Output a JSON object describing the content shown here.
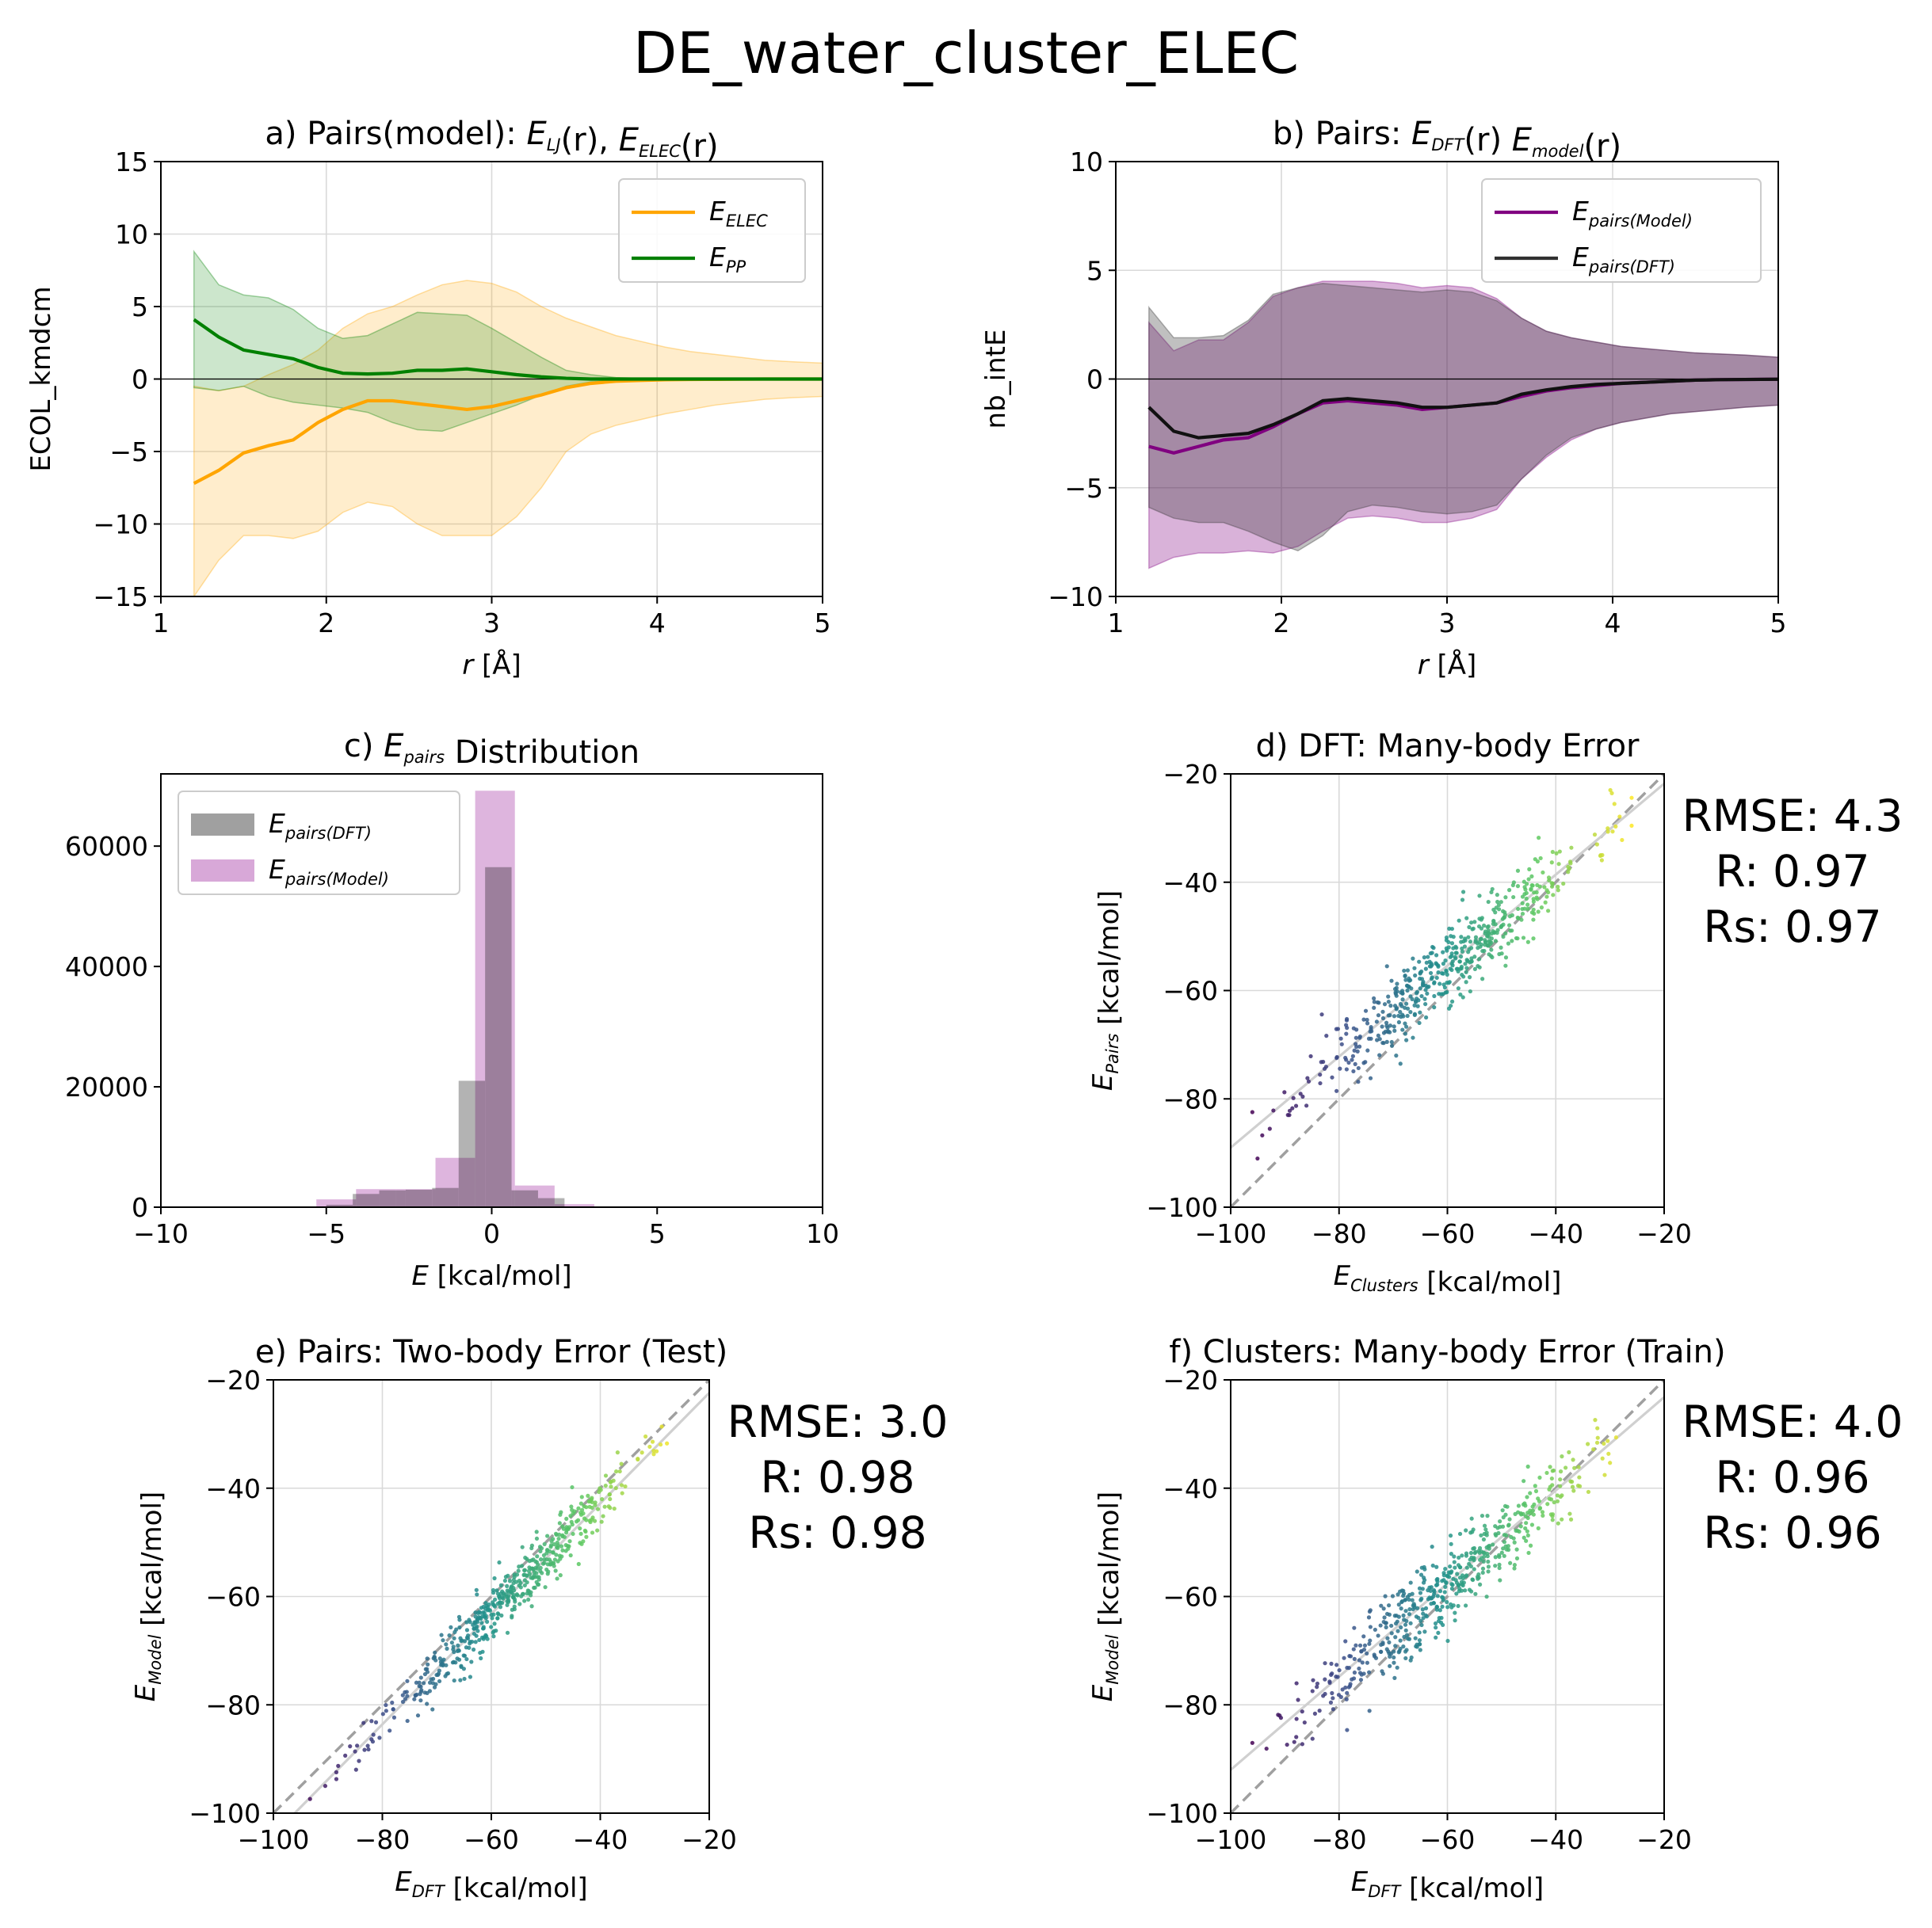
{
  "figure": {
    "title": "DE_water_cluster_ELEC",
    "colors": {
      "elec": "#ffa500",
      "pp": "#008000",
      "model": "#800080",
      "dft": "#303030",
      "hist_dft": "#a0a0a0",
      "hist_model": "#d8a8d8"
    }
  },
  "chart_data": [
    {
      "id": "a",
      "type": "line",
      "title": {
        "pre": "a) Pairs(model): ",
        "parts": [
          [
            "E",
            "LJ"
          ],
          "(r), ",
          [
            "E",
            "ELEC"
          ],
          "(r)"
        ]
      },
      "title_text": "a) Pairs(model): E_LJ(r), E_ELEC(r)",
      "xlabel": "r [Å]",
      "ylabel": "ECOL_kmdcm",
      "xlim": [
        1,
        5
      ],
      "ylim": [
        -15,
        15
      ],
      "xticks": [
        "1",
        "2",
        "3",
        "4",
        "5"
      ],
      "yticks": [
        "−15",
        "−10",
        "−5",
        "0",
        "5",
        "10",
        "15"
      ],
      "grid": true,
      "legend": "top-right",
      "x": [
        1.2,
        1.35,
        1.5,
        1.65,
        1.8,
        1.95,
        2.1,
        2.25,
        2.4,
        2.55,
        2.7,
        2.85,
        3.0,
        3.15,
        3.3,
        3.45,
        3.6,
        3.75,
        3.9,
        4.05,
        4.2,
        4.35,
        4.5,
        4.65,
        4.8,
        5.0
      ],
      "series": [
        {
          "name": "E_ELEC",
          "label": [
            "E",
            "ELEC"
          ],
          "color": "#ffa500",
          "values": [
            -7.2,
            -6.3,
            -5.1,
            -4.6,
            -4.2,
            -3.0,
            -2.1,
            -1.5,
            -1.5,
            -1.7,
            -1.9,
            -2.1,
            -1.9,
            -1.5,
            -1.1,
            -0.6,
            -0.3,
            -0.15,
            -0.1,
            -0.05,
            -0.03,
            -0.02,
            -0.01,
            0,
            0,
            0
          ],
          "upper": [
            -0.5,
            -0.8,
            -0.5,
            0.3,
            1.0,
            2.0,
            3.5,
            4.5,
            5.0,
            5.8,
            6.5,
            6.8,
            6.6,
            6.0,
            5.0,
            4.2,
            3.6,
            3.0,
            2.6,
            2.2,
            1.9,
            1.7,
            1.5,
            1.3,
            1.2,
            1.1
          ],
          "lower": [
            -15,
            -12.5,
            -10.8,
            -10.8,
            -11.0,
            -10.5,
            -9.2,
            -8.5,
            -8.8,
            -10.0,
            -10.8,
            -10.8,
            -10.8,
            -9.5,
            -7.5,
            -5.0,
            -3.8,
            -3.2,
            -2.8,
            -2.4,
            -2.1,
            -1.8,
            -1.6,
            -1.4,
            -1.3,
            -1.2
          ]
        },
        {
          "name": "E_PP",
          "label": [
            "E",
            "PP"
          ],
          "color": "#008000",
          "values": [
            4.1,
            2.9,
            2.0,
            1.7,
            1.4,
            0.8,
            0.4,
            0.35,
            0.4,
            0.6,
            0.6,
            0.7,
            0.5,
            0.3,
            0.15,
            0.05,
            0,
            0,
            0,
            0,
            0,
            0,
            0,
            0,
            0,
            0
          ],
          "upper": [
            8.8,
            6.5,
            5.8,
            5.6,
            4.8,
            3.5,
            2.8,
            3.0,
            3.8,
            4.6,
            4.5,
            4.4,
            3.5,
            2.5,
            1.5,
            0.6,
            0.3,
            0.1,
            0.05,
            0,
            0,
            0,
            0,
            0,
            0,
            0
          ],
          "lower": [
            -0.6,
            -0.8,
            -0.5,
            -1.2,
            -1.6,
            -1.8,
            -2.0,
            -2.3,
            -3.0,
            -3.5,
            -3.6,
            -3.0,
            -2.4,
            -1.8,
            -1.1,
            -0.5,
            -0.2,
            -0.1,
            0,
            0,
            0,
            0,
            0,
            0,
            0,
            0
          ]
        }
      ]
    },
    {
      "id": "b",
      "type": "line",
      "title": {
        "pre": "b) Pairs: ",
        "parts": [
          [
            "E",
            "DFT"
          ],
          "(r) ",
          [
            "E",
            "model"
          ],
          "(r)"
        ]
      },
      "title_text": "b) Pairs: E_DFT(r) E_model(r)",
      "xlabel": "r [Å]",
      "ylabel": "nb_intE",
      "xlim": [
        1,
        5
      ],
      "ylim": [
        -10,
        10
      ],
      "xticks": [
        "1",
        "2",
        "3",
        "4",
        "5"
      ],
      "yticks": [
        "−10",
        "−5",
        "0",
        "5",
        "10"
      ],
      "grid": true,
      "legend": "top-right",
      "x": [
        1.2,
        1.35,
        1.5,
        1.65,
        1.8,
        1.95,
        2.1,
        2.25,
        2.4,
        2.55,
        2.7,
        2.85,
        3.0,
        3.15,
        3.3,
        3.45,
        3.6,
        3.75,
        3.9,
        4.05,
        4.2,
        4.35,
        4.5,
        4.65,
        4.8,
        5.0
      ],
      "series": [
        {
          "name": "E_pairs(Model)",
          "label": [
            "E",
            "pairs(Model)"
          ],
          "color": "#800080",
          "values": [
            -3.1,
            -3.4,
            -3.1,
            -2.8,
            -2.7,
            -2.2,
            -1.6,
            -1.1,
            -1.0,
            -1.1,
            -1.2,
            -1.4,
            -1.3,
            -1.2,
            -1.1,
            -0.8,
            -0.55,
            -0.4,
            -0.3,
            -0.2,
            -0.15,
            -0.1,
            -0.05,
            -0.03,
            -0.02,
            -0.01
          ],
          "upper": [
            2.6,
            1.3,
            1.8,
            1.8,
            2.6,
            3.8,
            4.2,
            4.5,
            4.5,
            4.5,
            4.4,
            4.2,
            4.3,
            4.2,
            3.7,
            2.8,
            2.2,
            1.9,
            1.7,
            1.5,
            1.4,
            1.3,
            1.2,
            1.15,
            1.1,
            1.0
          ],
          "lower": [
            -8.7,
            -8.2,
            -8.0,
            -8.0,
            -7.9,
            -8.0,
            -7.7,
            -7.0,
            -6.4,
            -6.3,
            -6.4,
            -6.6,
            -6.6,
            -6.4,
            -6.0,
            -4.6,
            -3.6,
            -2.8,
            -2.3,
            -2.0,
            -1.8,
            -1.6,
            -1.5,
            -1.4,
            -1.3,
            -1.2
          ]
        },
        {
          "name": "E_pairs(DFT)",
          "label": [
            "E",
            "pairs(DFT)"
          ],
          "color": "#303030",
          "values": [
            -1.3,
            -2.4,
            -2.7,
            -2.6,
            -2.5,
            -2.1,
            -1.6,
            -1.0,
            -0.9,
            -1.0,
            -1.1,
            -1.3,
            -1.3,
            -1.2,
            -1.1,
            -0.7,
            -0.5,
            -0.35,
            -0.25,
            -0.2,
            -0.15,
            -0.1,
            -0.05,
            -0.03,
            -0.02,
            -0.01
          ],
          "upper": [
            3.3,
            1.9,
            1.9,
            2.0,
            2.7,
            3.9,
            4.2,
            4.4,
            4.3,
            4.2,
            4.1,
            4.0,
            4.1,
            4.0,
            3.6,
            2.8,
            2.2,
            1.9,
            1.7,
            1.5,
            1.4,
            1.3,
            1.2,
            1.15,
            1.1,
            1.0
          ],
          "lower": [
            -5.9,
            -6.4,
            -6.6,
            -6.6,
            -7.0,
            -7.5,
            -7.9,
            -7.2,
            -6.1,
            -5.8,
            -5.9,
            -6.1,
            -6.2,
            -6.1,
            -5.8,
            -4.6,
            -3.5,
            -2.7,
            -2.3,
            -2.0,
            -1.8,
            -1.6,
            -1.5,
            -1.4,
            -1.3,
            -1.2
          ]
        }
      ]
    },
    {
      "id": "c",
      "type": "bar",
      "title": {
        "pre": "c) ",
        "parts": [
          [
            "E",
            "pairs"
          ],
          " Distribution"
        ]
      },
      "title_text": "c) E_pairs Distribution",
      "xlabel": "E [kcal/mol]",
      "ylabel": "",
      "xlim": [
        -10,
        10
      ],
      "ylim": [
        0,
        72000
      ],
      "xticks": [
        "−10",
        "−5",
        "0",
        "5",
        "10"
      ],
      "yticks": [
        "0",
        "20000",
        "40000",
        "60000"
      ],
      "grid": false,
      "legend": "top-left",
      "bin_edges_dft": [
        -5.0,
        -4.2,
        -3.4,
        -2.6,
        -1.8,
        -1.0,
        -0.2,
        0.6,
        1.4,
        2.2
      ],
      "bin_edges_model": [
        -5.3,
        -4.1,
        -2.9,
        -1.7,
        -0.5,
        0.7,
        1.9,
        3.1
      ],
      "series": [
        {
          "name": "E_pairs(DFT)",
          "label": [
            "E",
            "pairs(DFT)"
          ],
          "color": "#a0a0a0",
          "values": [
            400,
            2200,
            2800,
            2900,
            3200,
            21000,
            56500,
            2800,
            1500
          ]
        },
        {
          "name": "E_pairs(Model)",
          "label": [
            "E",
            "pairs(Model)"
          ],
          "color": "#d8a8d8",
          "values": [
            1300,
            3000,
            3000,
            8200,
            69200,
            3600,
            500
          ]
        }
      ]
    },
    {
      "id": "d",
      "type": "scatter",
      "title": {
        "pre": "d) DFT: Many-body Error",
        "parts": []
      },
      "title_text": "d) DFT: Many-body Error",
      "xlabel": {
        "parts": [
          [
            "E",
            "Clusters"
          ],
          " [kcal/mol]"
        ]
      },
      "xlabel_text": "E_Clusters [kcal/mol]",
      "ylabel": {
        "parts": [
          [
            "E",
            "Pairs"
          ],
          " [kcal/mol]"
        ]
      },
      "ylabel_text": "E_Pairs [kcal/mol]",
      "xlim": [
        -100,
        -20
      ],
      "ylim": [
        -100,
        -20
      ],
      "xticks": [
        "−100",
        "−80",
        "−60",
        "−40",
        "−20"
      ],
      "yticks": [
        "−100",
        "−80",
        "−60",
        "−40",
        "−20"
      ],
      "grid": true,
      "stats": [
        "RMSE: 4.3",
        "R: 0.97",
        "Rs: 0.97"
      ],
      "fit": {
        "slope": 0.84,
        "intercept": -5.0
      },
      "point_cloud": {
        "n": 520,
        "x_min": -96,
        "x_max": -26,
        "center": -60,
        "spread": 13,
        "noise": 3.6,
        "seed": 11
      }
    },
    {
      "id": "e",
      "type": "scatter",
      "title": {
        "pre": "e) Pairs: Two-body Error (Test)",
        "parts": []
      },
      "title_text": "e) Pairs: Two-body Error (Test)",
      "xlabel": {
        "parts": [
          [
            "E",
            "DFT"
          ],
          " [kcal/mol]"
        ]
      },
      "xlabel_text": "E_DFT [kcal/mol]",
      "ylabel": {
        "parts": [
          [
            "E",
            "Model"
          ],
          " [kcal/mol]"
        ]
      },
      "ylabel_text": "E_Model [kcal/mol]",
      "xlim": [
        -100,
        -20
      ],
      "ylim": [
        -100,
        -20
      ],
      "xticks": [
        "−100",
        "−80",
        "−60",
        "−40",
        "−20"
      ],
      "yticks": [
        "−100",
        "−80",
        "−60",
        "−40",
        "−20"
      ],
      "grid": true,
      "stats": [
        "RMSE: 3.0",
        "R: 0.98",
        "Rs: 0.98"
      ],
      "fit": {
        "slope": 1.02,
        "intercept": -2.0
      },
      "point_cloud": {
        "n": 520,
        "x_min": -96,
        "x_max": -26,
        "center": -58,
        "spread": 12,
        "noise": 2.6,
        "seed": 23
      }
    },
    {
      "id": "f",
      "type": "scatter",
      "title": {
        "pre": "f) Clusters: Many-body Error (Train)",
        "parts": []
      },
      "title_text": "f) Clusters: Many-body Error (Train)",
      "xlabel": {
        "parts": [
          [
            "E",
            "DFT"
          ],
          " [kcal/mol]"
        ]
      },
      "xlabel_text": "E_DFT [kcal/mol]",
      "ylabel": {
        "parts": [
          [
            "E",
            "Model"
          ],
          " [kcal/mol]"
        ]
      },
      "ylabel_text": "E_Model [kcal/mol]",
      "xlim": [
        -100,
        -20
      ],
      "ylim": [
        -100,
        -20
      ],
      "xticks": [
        "−100",
        "−80",
        "−60",
        "−40",
        "−20"
      ],
      "yticks": [
        "−100",
        "−80",
        "−60",
        "−40",
        "−20"
      ],
      "grid": true,
      "stats": [
        "RMSE: 4.0",
        "R: 0.96",
        "Rs: 0.96"
      ],
      "fit": {
        "slope": 0.86,
        "intercept": -6.0
      },
      "point_cloud": {
        "n": 520,
        "x_min": -96,
        "x_max": -26,
        "center": -60,
        "spread": 13,
        "noise": 3.8,
        "seed": 37
      }
    }
  ]
}
